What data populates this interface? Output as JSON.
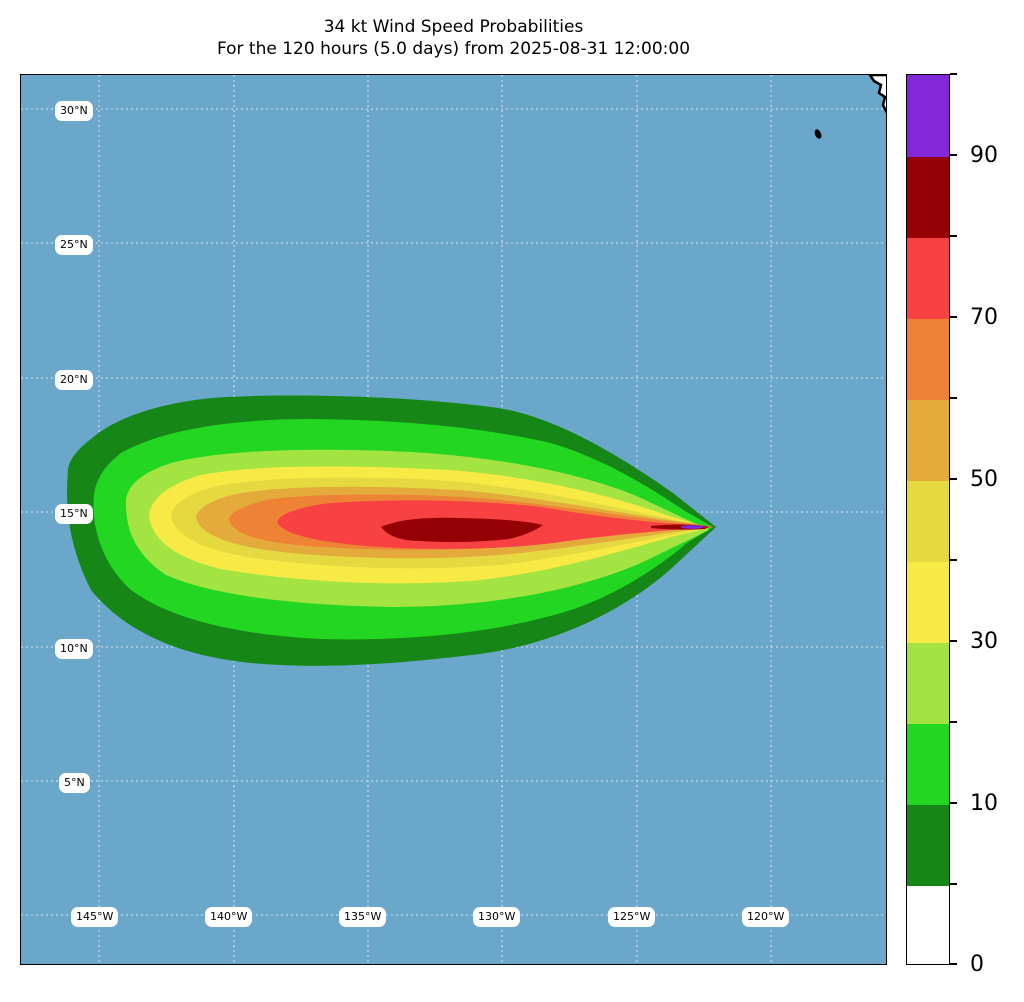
{
  "title": {
    "line1": "34 kt Wind Speed Probabilities",
    "line2": "For the 120 hours (5.0 days) from 2025-08-31 12:00:00"
  },
  "map": {
    "ocean_color": "#6ba6cb",
    "land_color": "#ffffff",
    "lat_labels": [
      "30°N",
      "25°N",
      "20°N",
      "15°N",
      "10°N",
      "5°N"
    ],
    "lon_labels": [
      "145°W",
      "140°W",
      "135°W",
      "130°W",
      "125°W",
      "120°W"
    ]
  },
  "probability_field": {
    "variable": "34 kt wind speed probability",
    "unit": "%",
    "peak_location": "near 15°N, 123°W",
    "bands": [
      {
        "min": 5,
        "color": "#168716"
      },
      {
        "min": 10,
        "color": "#22d622"
      },
      {
        "min": 20,
        "color": "#a3e443"
      },
      {
        "min": 30,
        "color": "#f8ea45"
      },
      {
        "min": 40,
        "color": "#e5d942"
      },
      {
        "min": 50,
        "color": "#e4ab3c"
      },
      {
        "min": 60,
        "color": "#ee8235"
      },
      {
        "min": 70,
        "color": "#f84143"
      },
      {
        "min": 80,
        "color": "#950004"
      },
      {
        "min": 90,
        "color": "#8228da"
      }
    ]
  },
  "colorbar": {
    "colors": [
      "#ffffff",
      "#168716",
      "#22d622",
      "#a3e443",
      "#f8ea45",
      "#e5d942",
      "#e4ab3c",
      "#ee8235",
      "#f84143",
      "#950004",
      "#8228da"
    ],
    "tick_labels": [
      "0",
      "10",
      "30",
      "50",
      "70",
      "90"
    ]
  }
}
